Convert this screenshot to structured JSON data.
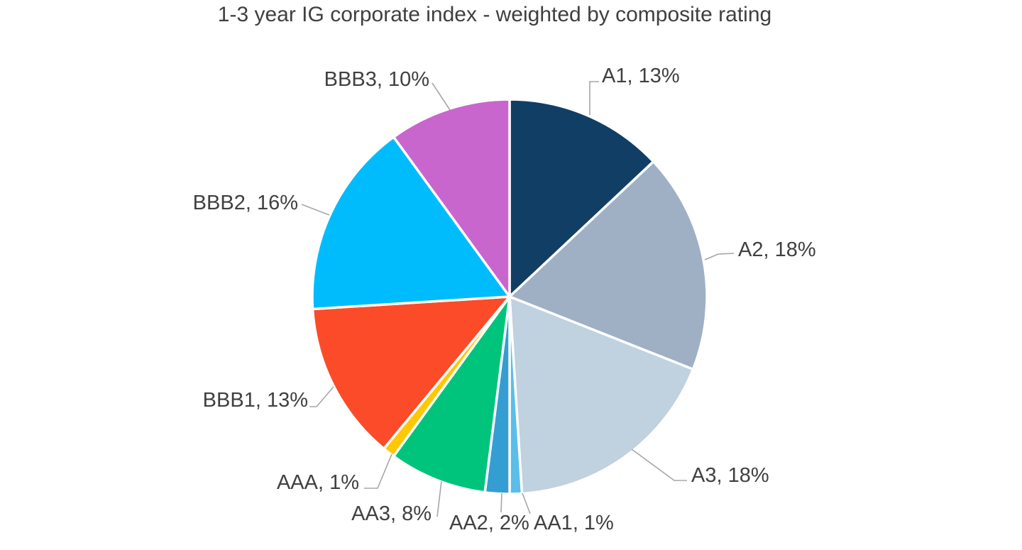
{
  "page": {
    "background": "#FFFFFF"
  },
  "chart_data": {
    "type": "pie",
    "title": "1-3 year IG corporate index - weighted by composite rating",
    "unit": "%",
    "start_angle": "top",
    "direction": "clockwise",
    "legend": "none",
    "data_label_format": "name, value%",
    "slices": [
      {
        "name": "A1",
        "value": 13,
        "label": "A1, 13%",
        "color": "#113E64"
      },
      {
        "name": "A2",
        "value": 18,
        "label": "A2, 18%",
        "color": "#9FB0C5"
      },
      {
        "name": "A3",
        "value": 18,
        "label": "A3, 18%",
        "color": "#C0D1DF"
      },
      {
        "name": "AA1",
        "value": 1,
        "label": "AA1, 1%",
        "color": "#5BBDE9"
      },
      {
        "name": "AA2",
        "value": 2,
        "label": "AA2, 2%",
        "color": "#349ED2"
      },
      {
        "name": "AA3",
        "value": 8,
        "label": "AA3, 8%",
        "color": "#00C47C"
      },
      {
        "name": "AAA",
        "value": 1,
        "label": "AAA, 1%",
        "color": "#FFC805"
      },
      {
        "name": "BBB1",
        "value": 13,
        "label": "BBB1, 13%",
        "color": "#FB4B28"
      },
      {
        "name": "BBB2",
        "value": 16,
        "label": "BBB2, 16%",
        "color": "#00BCFD"
      },
      {
        "name": "BBB3",
        "value": 10,
        "label": "BBB3, 10%",
        "color": "#C966CE"
      }
    ],
    "label_color": "#404040",
    "leader_line_color": "#A6A6A6",
    "slice_border_color": "#FFFFFF",
    "title_color": "#3F3F3F"
  }
}
